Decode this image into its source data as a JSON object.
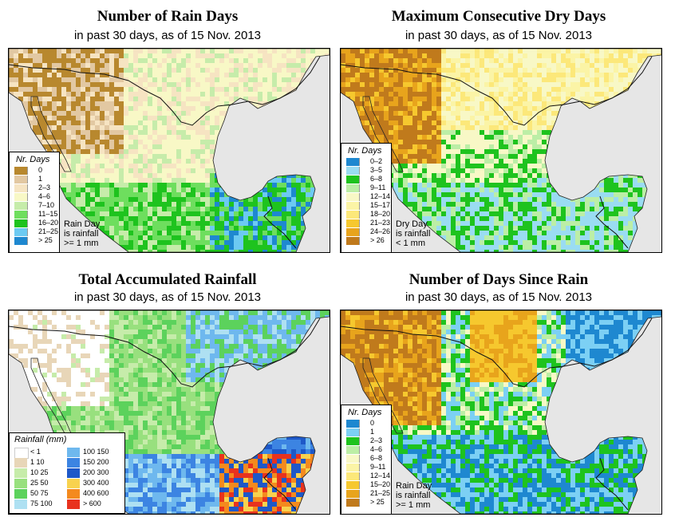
{
  "panels": [
    {
      "title": "Number of Rain Days",
      "subtitle": "in past 30 days, as of  15 Nov. 2013",
      "legend_title": "Nr. Days",
      "legend": [
        {
          "label": "0",
          "color": "#b8882e"
        },
        {
          "label": "1",
          "color": "#e2c8a2"
        },
        {
          "label": "2–3",
          "color": "#f6e4c2"
        },
        {
          "label": "4–6",
          "color": "#f8f8c6"
        },
        {
          "label": "7–10",
          "color": "#c6ecaa"
        },
        {
          "label": "11–15",
          "color": "#6ede5e"
        },
        {
          "label": "16–20",
          "color": "#1ec31e"
        },
        {
          "label": "21–25",
          "color": "#6ccaf2"
        },
        {
          "label": "> 25",
          "color": "#1e88d0"
        }
      ],
      "note": [
        "Rain Day",
        "is rainfall",
        ">= 1 mm"
      ]
    },
    {
      "title": "Maximum Consecutive Dry Days",
      "subtitle": "in past 30 days, as of  15 Nov. 2013",
      "legend_title": "Nr. Days",
      "legend": [
        {
          "label": "0–2",
          "color": "#1e88d0"
        },
        {
          "label": "3–5",
          "color": "#9adcf2"
        },
        {
          "label": "6–8",
          "color": "#1ec31e"
        },
        {
          "label": "9–11",
          "color": "#bceea6"
        },
        {
          "label": "12–14",
          "color": "#f8f8c6"
        },
        {
          "label": "15–17",
          "color": "#fbf4a6"
        },
        {
          "label": "18–20",
          "color": "#fce87a"
        },
        {
          "label": "21–23",
          "color": "#f6c82e"
        },
        {
          "label": "24–26",
          "color": "#e8a41c"
        },
        {
          "label": "> 26",
          "color": "#c07a1c"
        }
      ],
      "note": [
        "Dry Day",
        "is rainfall",
        "< 1 mm"
      ]
    },
    {
      "title": "Total Accumulated Rainfall",
      "subtitle": "in past 30 days, as of  15 Nov. 2013",
      "legend_title": "Rainfall (mm)",
      "legend_left": [
        {
          "label": "< 1",
          "color": "#ffffff"
        },
        {
          "label": "1   10",
          "color": "#e8d6b8"
        },
        {
          "label": "10   25",
          "color": "#c6ecaa"
        },
        {
          "label": "25   50",
          "color": "#98e07e"
        },
        {
          "label": "50   75",
          "color": "#5cd25c"
        },
        {
          "label": "75   100",
          "color": "#aee0f2"
        }
      ],
      "legend_right": [
        {
          "label": "100   150",
          "color": "#6eb8ee"
        },
        {
          "label": "150   200",
          "color": "#3c84e2"
        },
        {
          "label": "200   300",
          "color": "#1e58c8"
        },
        {
          "label": "300   400",
          "color": "#f8d24e"
        },
        {
          "label": "400   600",
          "color": "#f48a1e"
        },
        {
          "label": "> 600",
          "color": "#e8321e"
        }
      ]
    },
    {
      "title": "Number of Days Since Rain",
      "subtitle": "in past 30 days, as of  15 Nov. 2013",
      "legend_title": "Nr. Days",
      "legend": [
        {
          "label": "0",
          "color": "#1e88d0"
        },
        {
          "label": "1",
          "color": "#7cd0f4"
        },
        {
          "label": "2–3",
          "color": "#1ec31e"
        },
        {
          "label": "4–6",
          "color": "#bceea6"
        },
        {
          "label": "6–8",
          "color": "#f8f8c6"
        },
        {
          "label": "9–11",
          "color": "#fbf4a6"
        },
        {
          "label": "12–14",
          "color": "#fce87a"
        },
        {
          "label": "15–20",
          "color": "#f6c82e"
        },
        {
          "label": "21–25",
          "color": "#e8a41c"
        },
        {
          "label": "> 25",
          "color": "#c07a1c"
        }
      ],
      "note": [
        "Rain Day",
        "is rainfall",
        ">= 1 mm"
      ]
    }
  ]
}
